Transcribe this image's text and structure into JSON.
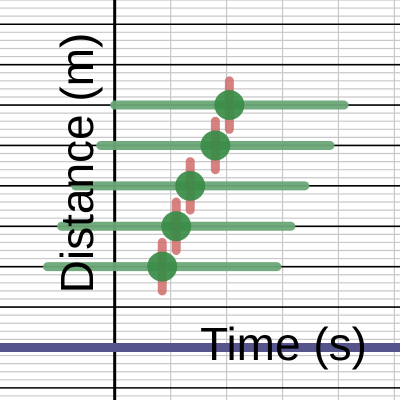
{
  "chart_data": {
    "type": "scatter",
    "title": "",
    "xlabel": "Time (s)",
    "ylabel": "Distance (m)",
    "xlim": [
      -4.1,
      10.2
    ],
    "ylim": [
      -6.3,
      3.6
    ],
    "grid": true,
    "legend": "none",
    "series": [
      {
        "points": [
          {
            "x": 4.1,
            "y": 1.0,
            "x_err": 4.1,
            "y_err": 0.6
          },
          {
            "x": 3.6,
            "y": 0.0,
            "x_err": 4.1,
            "y_err": 0.6
          },
          {
            "x": 2.7,
            "y": -1.0,
            "x_err": 4.1,
            "y_err": 0.6
          },
          {
            "x": 2.2,
            "y": -2.0,
            "x_err": 4.1,
            "y_err": 0.6
          },
          {
            "x": 1.7,
            "y": -3.0,
            "x_err": 4.1,
            "y_err": 0.6
          }
        ]
      }
    ],
    "reference_line": {
      "y": -5.0
    },
    "colors": {
      "point": "#388c46",
      "x_error": "#6aa877",
      "y_error": "#d06b6b",
      "reference_line": "#55558b",
      "grid_major": "#000000",
      "grid_minor": "#c8c8c8"
    }
  }
}
